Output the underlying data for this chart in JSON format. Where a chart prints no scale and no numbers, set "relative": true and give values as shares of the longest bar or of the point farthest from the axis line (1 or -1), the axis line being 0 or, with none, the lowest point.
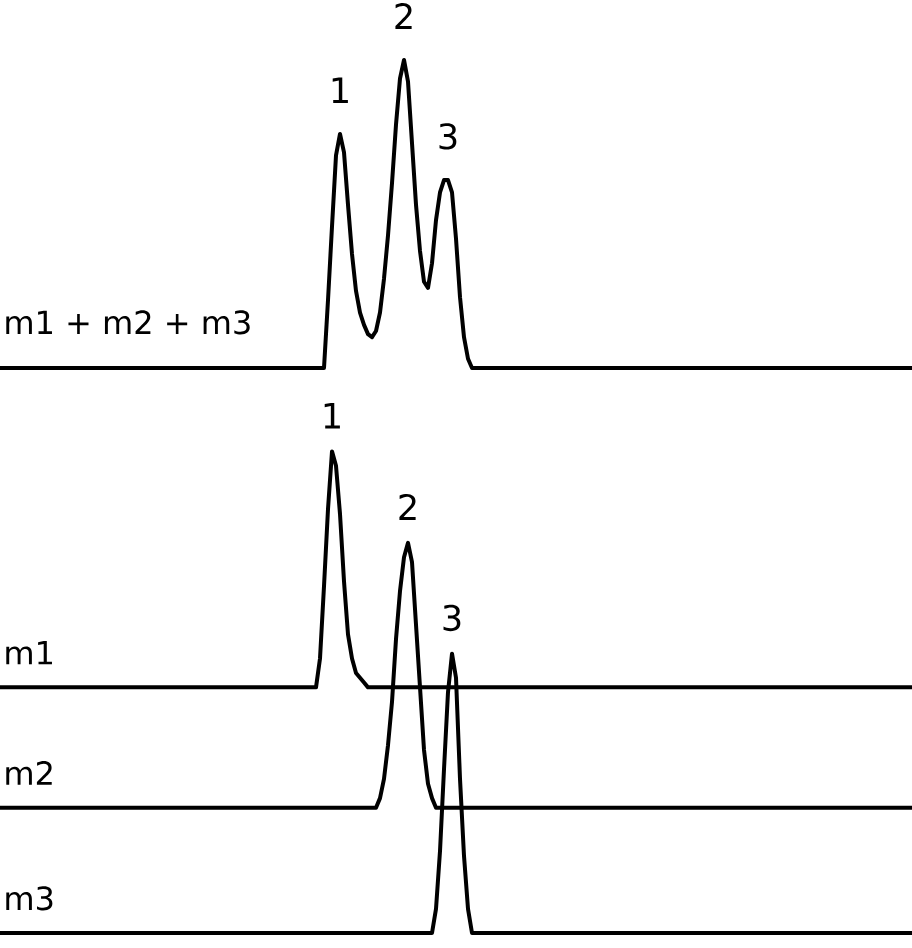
{
  "chart_data": [
    {
      "type": "line",
      "relative": true,
      "categories": [
        null,
        null,
        null,
        null,
        null,
        null,
        null,
        null,
        null,
        null,
        null,
        null,
        null,
        null,
        null,
        null,
        null,
        null,
        null,
        null,
        null,
        null,
        null,
        null,
        null,
        null,
        null,
        null,
        null,
        null,
        null,
        null,
        null,
        null,
        null,
        null,
        null,
        null,
        null,
        null,
        null,
        null,
        null,
        null,
        null,
        null,
        null,
        null,
        null,
        null,
        null,
        null,
        null,
        null,
        null,
        null,
        null,
        null,
        null,
        null,
        null,
        null,
        null,
        null,
        null,
        null,
        null,
        null,
        null,
        null,
        null,
        null,
        null,
        null,
        null,
        null,
        null,
        null,
        null,
        null,
        null,
        null,
        null,
        null,
        null,
        null,
        null,
        null,
        null,
        null,
        null,
        null,
        null,
        null,
        null,
        null,
        null,
        null,
        null,
        null,
        null,
        null,
        null,
        null,
        null,
        null,
        null,
        null,
        null,
        null,
        null,
        null,
        null,
        null,
        null,
        null,
        null,
        null,
        null,
        null,
        null,
        null,
        null,
        null,
        null,
        null,
        null,
        null,
        null,
        null,
        null,
        null,
        null,
        null,
        null,
        null,
        null,
        null,
        null,
        null,
        null,
        null,
        null,
        null,
        null,
        null,
        null,
        null,
        null,
        null,
        null,
        null,
        null,
        null,
        null,
        null,
        null,
        null,
        null,
        null,
        null,
        null,
        null,
        null,
        null,
        null,
        null,
        null,
        null,
        null,
        null,
        null,
        null,
        null,
        null,
        null,
        null,
        null,
        null,
        null,
        null,
        null,
        null,
        null,
        null,
        null,
        null,
        null,
        null,
        null,
        null,
        null,
        null,
        null,
        null,
        null,
        null,
        null,
        null,
        null,
        null,
        null,
        null,
        null,
        null,
        null,
        null,
        null,
        null,
        null,
        null,
        null,
        null,
        null,
        null,
        null,
        null,
        null,
        null,
        null,
        null,
        null,
        null,
        null,
        null,
        null,
        null,
        null,
        null
      ],
      "series": [
        {
          "name": "m1 + m2 + m3",
          "color": "#000000",
          "values": [
            0,
            0,
            0,
            0,
            0,
            0,
            0,
            0,
            0,
            0,
            0,
            0,
            0,
            0,
            0,
            0,
            0,
            0,
            0,
            0,
            0,
            0,
            0,
            0,
            0,
            0,
            0,
            0,
            0,
            0,
            0,
            0,
            0,
            0,
            0,
            0,
            0,
            0,
            0,
            0,
            0,
            0,
            0,
            0,
            0,
            0,
            0,
            0,
            0,
            0,
            0,
            0,
            0,
            0,
            0,
            0,
            0,
            0,
            0,
            0,
            0,
            0,
            0,
            0,
            0,
            0,
            0,
            0,
            0,
            0,
            0,
            0,
            0,
            0,
            0,
            0,
            0,
            0,
            0,
            0,
            0,
            0,
            0.22,
            0.46,
            0.69,
            0.76,
            0.7,
            0.53,
            0.37,
            0.25,
            0.18,
            0.14,
            0.11,
            0.1,
            0.12,
            0.18,
            0.29,
            0.43,
            0.6,
            0.79,
            0.94,
            1,
            0.93,
            0.73,
            0.53,
            0.38,
            0.28,
            0.26,
            0.34,
            0.48,
            0.57,
            0.61,
            0.61,
            0.57,
            0.42,
            0.23,
            0.1,
            0.03,
            0,
            0,
            0,
            0,
            0,
            0,
            0,
            0,
            0,
            0,
            0,
            0,
            0,
            0,
            0,
            0,
            0,
            0,
            0,
            0,
            0,
            0,
            0,
            0,
            0,
            0,
            0,
            0,
            0,
            0,
            0,
            0,
            0,
            0,
            0,
            0,
            0,
            0,
            0,
            0,
            0,
            0,
            0,
            0,
            0,
            0,
            0,
            0,
            0,
            0,
            0,
            0,
            0,
            0,
            0,
            0,
            0,
            0,
            0,
            0,
            0,
            0,
            0,
            0,
            0,
            0,
            0,
            0,
            0,
            0,
            0,
            0,
            0,
            0,
            0,
            0,
            0,
            0,
            0,
            0,
            0,
            0,
            0,
            0,
            0,
            0,
            0,
            0,
            0,
            0,
            0,
            0,
            0,
            0,
            0,
            0,
            0,
            0,
            0,
            0,
            0,
            0,
            0,
            0,
            0,
            0,
            0,
            0,
            0,
            0,
            0
          ]
        }
      ],
      "annotations": [
        "1",
        "2",
        "3"
      ]
    },
    {
      "type": "line",
      "relative": true,
      "categories": [
        null,
        null,
        null,
        null,
        null,
        null,
        null,
        null,
        null,
        null,
        null,
        null,
        null,
        null,
        null,
        null,
        null,
        null,
        null,
        null,
        null,
        null,
        null,
        null,
        null,
        null,
        null,
        null,
        null,
        null,
        null,
        null,
        null,
        null,
        null,
        null,
        null,
        null,
        null,
        null,
        null,
        null,
        null,
        null,
        null,
        null,
        null,
        null,
        null,
        null,
        null,
        null,
        null,
        null,
        null,
        null,
        null,
        null,
        null,
        null,
        null,
        null,
        null,
        null,
        null,
        null,
        null,
        null,
        null,
        null,
        null,
        null,
        null,
        null,
        null,
        null,
        null,
        null,
        null,
        null,
        null,
        null,
        null,
        null,
        null,
        null,
        null,
        null,
        null,
        null,
        null,
        null,
        null,
        null,
        null,
        null,
        null,
        null,
        null,
        null,
        null,
        null,
        null,
        null,
        null,
        null,
        null,
        null,
        null,
        null,
        null,
        null,
        null,
        null,
        null,
        null,
        null,
        null,
        null,
        null,
        null,
        null,
        null,
        null,
        null,
        null,
        null,
        null,
        null,
        null,
        null,
        null,
        null,
        null,
        null,
        null,
        null,
        null,
        null,
        null,
        null,
        null,
        null,
        null,
        null,
        null,
        null,
        null,
        null,
        null,
        null,
        null,
        null,
        null,
        null,
        null,
        null,
        null,
        null,
        null,
        null,
        null,
        null,
        null,
        null,
        null,
        null,
        null,
        null,
        null,
        null,
        null,
        null,
        null,
        null,
        null,
        null,
        null,
        null,
        null,
        null,
        null,
        null,
        null,
        null,
        null,
        null,
        null,
        null,
        null,
        null,
        null,
        null,
        null,
        null,
        null,
        null,
        null,
        null,
        null,
        null,
        null,
        null,
        null,
        null,
        null,
        null,
        null,
        null,
        null,
        null,
        null,
        null,
        null,
        null,
        null,
        null,
        null,
        null,
        null,
        null,
        null,
        null,
        null,
        null,
        null,
        null,
        null,
        null
      ],
      "series": [
        {
          "name": "m1",
          "color": "#000000",
          "values": [
            0.51,
            0.51,
            0.51,
            0.51,
            0.51,
            0.51,
            0.51,
            0.51,
            0.51,
            0.51,
            0.51,
            0.51,
            0.51,
            0.51,
            0.51,
            0.51,
            0.51,
            0.51,
            0.51,
            0.51,
            0.51,
            0.51,
            0.51,
            0.51,
            0.51,
            0.51,
            0.51,
            0.51,
            0.51,
            0.51,
            0.51,
            0.51,
            0.51,
            0.51,
            0.51,
            0.51,
            0.51,
            0.51,
            0.51,
            0.51,
            0.51,
            0.51,
            0.51,
            0.51,
            0.51,
            0.51,
            0.51,
            0.51,
            0.51,
            0.51,
            0.51,
            0.51,
            0.51,
            0.51,
            0.51,
            0.51,
            0.51,
            0.51,
            0.51,
            0.51,
            0.51,
            0.51,
            0.51,
            0.51,
            0.51,
            0.51,
            0.51,
            0.51,
            0.51,
            0.51,
            0.51,
            0.51,
            0.51,
            0.51,
            0.51,
            0.51,
            0.51,
            0.51,
            0.51,
            0.51,
            0.57,
            0.72,
            0.88,
            1,
            0.97,
            0.87,
            0.73,
            0.62,
            0.57,
            0.54,
            0.53,
            0.52,
            0.51,
            0.51,
            0.51,
            0.51,
            0.51,
            0.51,
            0.51,
            0.51,
            0.51,
            0.51,
            0.51,
            0.51,
            0.51,
            0.51,
            0.51,
            0.51,
            0.51,
            0.51,
            0.51,
            0.51,
            0.51,
            0.51,
            0.51,
            0.51,
            0.51,
            0.51,
            0.51,
            0.51,
            0.51,
            0.51,
            0.51,
            0.51,
            0.51,
            0.51,
            0.51,
            0.51,
            0.51,
            0.51,
            0.51,
            0.51,
            0.51,
            0.51,
            0.51,
            0.51,
            0.51,
            0.51,
            0.51,
            0.51,
            0.51,
            0.51,
            0.51,
            0.51,
            0.51,
            0.51,
            0.51,
            0.51,
            0.51,
            0.51,
            0.51,
            0.51,
            0.51,
            0.51,
            0.51,
            0.51,
            0.51,
            0.51,
            0.51,
            0.51,
            0.51,
            0.51,
            0.51,
            0.51,
            0.51,
            0.51,
            0.51,
            0.51,
            0.51,
            0.51,
            0.51,
            0.51,
            0.51,
            0.51,
            0.51,
            0.51,
            0.51,
            0.51,
            0.51,
            0.51,
            0.51,
            0.51,
            0.51,
            0.51,
            0.51,
            0.51,
            0.51,
            0.51,
            0.51,
            0.51,
            0.51,
            0.51,
            0.51,
            0.51,
            0.51,
            0.51,
            0.51,
            0.51,
            0.51,
            0.51,
            0.51,
            0.51,
            0.51,
            0.51,
            0.51,
            0.51,
            0.51,
            0.51,
            0.51,
            0.51,
            0.51,
            0.51,
            0.51,
            0.51,
            0.51,
            0.51,
            0.51,
            0.51,
            0.51,
            0.51,
            0.51,
            0.51,
            0.51,
            0.51,
            0.51,
            0.51,
            0.51,
            0.51,
            0.51
          ]
        },
        {
          "name": "m2",
          "color": "#000000",
          "values": [
            0.26,
            0.26,
            0.26,
            0.26,
            0.26,
            0.26,
            0.26,
            0.26,
            0.26,
            0.26,
            0.26,
            0.26,
            0.26,
            0.26,
            0.26,
            0.26,
            0.26,
            0.26,
            0.26,
            0.26,
            0.26,
            0.26,
            0.26,
            0.26,
            0.26,
            0.26,
            0.26,
            0.26,
            0.26,
            0.26,
            0.26,
            0.26,
            0.26,
            0.26,
            0.26,
            0.26,
            0.26,
            0.26,
            0.26,
            0.26,
            0.26,
            0.26,
            0.26,
            0.26,
            0.26,
            0.26,
            0.26,
            0.26,
            0.26,
            0.26,
            0.26,
            0.26,
            0.26,
            0.26,
            0.26,
            0.26,
            0.26,
            0.26,
            0.26,
            0.26,
            0.26,
            0.26,
            0.26,
            0.26,
            0.26,
            0.26,
            0.26,
            0.26,
            0.26,
            0.26,
            0.26,
            0.26,
            0.26,
            0.26,
            0.26,
            0.26,
            0.26,
            0.26,
            0.26,
            0.26,
            0.26,
            0.26,
            0.26,
            0.26,
            0.26,
            0.26,
            0.26,
            0.26,
            0.26,
            0.26,
            0.26,
            0.26,
            0.26,
            0.26,
            0.26,
            0.28,
            0.32,
            0.39,
            0.48,
            0.61,
            0.71,
            0.78,
            0.81,
            0.77,
            0.64,
            0.51,
            0.38,
            0.31,
            0.28,
            0.26,
            0.26,
            0.26,
            0.26,
            0.26,
            0.26,
            0.26,
            0.26,
            0.26,
            0.26,
            0.26,
            0.26,
            0.26,
            0.26,
            0.26,
            0.26,
            0.26,
            0.26,
            0.26,
            0.26,
            0.26,
            0.26,
            0.26,
            0.26,
            0.26,
            0.26,
            0.26,
            0.26,
            0.26,
            0.26,
            0.26,
            0.26,
            0.26,
            0.26,
            0.26,
            0.26,
            0.26,
            0.26,
            0.26,
            0.26,
            0.26,
            0.26,
            0.26,
            0.26,
            0.26,
            0.26,
            0.26,
            0.26,
            0.26,
            0.26,
            0.26,
            0.26,
            0.26,
            0.26,
            0.26,
            0.26,
            0.26,
            0.26,
            0.26,
            0.26,
            0.26,
            0.26,
            0.26,
            0.26,
            0.26,
            0.26,
            0.26,
            0.26,
            0.26,
            0.26,
            0.26,
            0.26,
            0.26,
            0.26,
            0.26,
            0.26,
            0.26,
            0.26,
            0.26,
            0.26,
            0.26,
            0.26,
            0.26,
            0.26,
            0.26,
            0.26,
            0.26,
            0.26,
            0.26,
            0.26,
            0.26,
            0.26,
            0.26,
            0.26,
            0.26,
            0.26,
            0.26,
            0.26,
            0.26,
            0.26,
            0.26,
            0.26,
            0.26,
            0.26,
            0.26,
            0.26,
            0.26,
            0.26,
            0.26,
            0.26,
            0.26,
            0.26,
            0.26,
            0.26,
            0.26,
            0.26,
            0.26,
            0.26,
            0.26,
            0.26
          ]
        },
        {
          "name": "m3",
          "color": "#000000",
          "values": [
            0,
            0,
            0,
            0,
            0,
            0,
            0,
            0,
            0,
            0,
            0,
            0,
            0,
            0,
            0,
            0,
            0,
            0,
            0,
            0,
            0,
            0,
            0,
            0,
            0,
            0,
            0,
            0,
            0,
            0,
            0,
            0,
            0,
            0,
            0,
            0,
            0,
            0,
            0,
            0,
            0,
            0,
            0,
            0,
            0,
            0,
            0,
            0,
            0,
            0,
            0,
            0,
            0,
            0,
            0,
            0,
            0,
            0,
            0,
            0,
            0,
            0,
            0,
            0,
            0,
            0,
            0,
            0,
            0,
            0,
            0,
            0,
            0,
            0,
            0,
            0,
            0,
            0,
            0,
            0,
            0,
            0,
            0,
            0,
            0,
            0,
            0,
            0,
            0,
            0,
            0,
            0,
            0,
            0,
            0,
            0,
            0,
            0,
            0,
            0,
            0,
            0,
            0,
            0,
            0,
            0,
            0,
            0,
            0,
            0.05,
            0.17,
            0.34,
            0.5,
            0.58,
            0.53,
            0.32,
            0.16,
            0.05,
            0,
            0,
            0,
            0,
            0,
            0,
            0,
            0,
            0,
            0,
            0,
            0,
            0,
            0,
            0,
            0,
            0,
            0,
            0,
            0,
            0,
            0,
            0,
            0,
            0,
            0,
            0,
            0,
            0,
            0,
            0,
            0,
            0,
            0,
            0,
            0,
            0,
            0,
            0,
            0,
            0,
            0,
            0,
            0,
            0,
            0,
            0,
            0,
            0,
            0,
            0,
            0,
            0,
            0,
            0,
            0,
            0,
            0,
            0,
            0,
            0,
            0,
            0,
            0,
            0,
            0,
            0,
            0,
            0,
            0,
            0,
            0,
            0,
            0,
            0,
            0,
            0,
            0,
            0,
            0,
            0,
            0,
            0,
            0,
            0,
            0,
            0,
            0,
            0,
            0,
            0,
            0,
            0,
            0,
            0,
            0,
            0,
            0,
            0,
            0,
            0,
            0,
            0,
            0,
            0,
            0,
            0,
            0,
            0,
            0,
            0
          ]
        }
      ],
      "annotations": [
        "1",
        "2",
        "3"
      ]
    }
  ]
}
